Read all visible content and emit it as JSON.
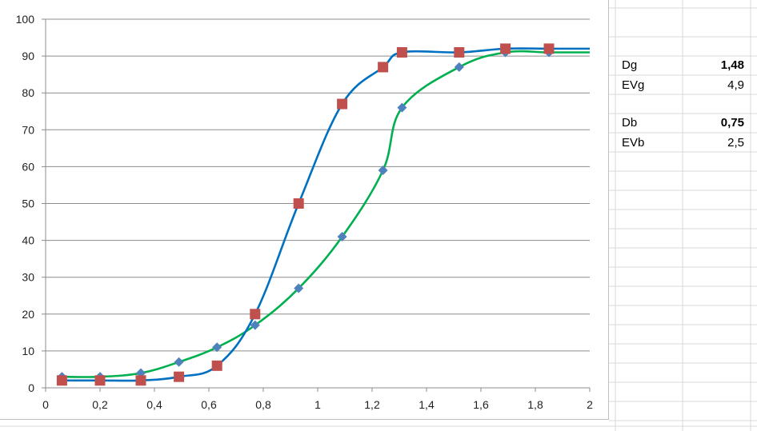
{
  "chart_data": {
    "type": "scatter",
    "xlim": [
      0,
      2
    ],
    "ylim": [
      0,
      100
    ],
    "x_ticks": [
      "0",
      "0,2",
      "0,4",
      "0,6",
      "0,8",
      "1",
      "1,2",
      "1,4",
      "1,6",
      "1,8",
      "2"
    ],
    "y_ticks": [
      "0",
      "10",
      "20",
      "30",
      "40",
      "50",
      "60",
      "70",
      "80",
      "90",
      "100"
    ],
    "grid": "horizontal",
    "legend": "none",
    "series": [
      {
        "marker": "diamond",
        "marker_color": "#4f81bd",
        "line_color": "#00b050",
        "x": [
          0.06,
          0.2,
          0.35,
          0.49,
          0.63,
          0.77,
          0.93,
          1.09,
          1.24,
          1.31,
          1.52,
          1.69,
          1.85
        ],
        "y": [
          3,
          3,
          4,
          7,
          11,
          17,
          27,
          41,
          59,
          76,
          87,
          91,
          91
        ]
      },
      {
        "marker": "square",
        "marker_color": "#c0504d",
        "line_color": "#0070c0",
        "x": [
          0.06,
          0.2,
          0.35,
          0.49,
          0.63,
          0.77,
          0.93,
          1.09,
          1.24,
          1.31,
          1.52,
          1.69,
          1.85
        ],
        "y": [
          2,
          2,
          2,
          3,
          6,
          20,
          50,
          77,
          87,
          91,
          91,
          92,
          92
        ]
      }
    ]
  },
  "table": [
    {
      "label": "Dg",
      "value": "1,48",
      "bold": true
    },
    {
      "label": "EVg",
      "value": "4,9",
      "bold": false
    },
    {
      "label": "Db",
      "value": "0,75",
      "bold": true
    },
    {
      "label": "EVb",
      "value": "2,5",
      "bold": false
    }
  ]
}
